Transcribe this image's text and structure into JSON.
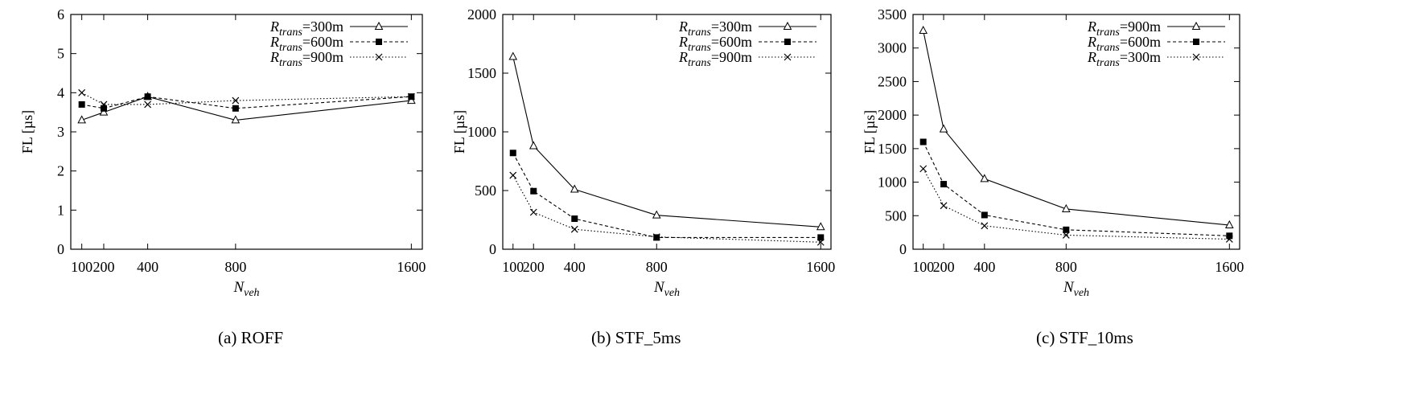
{
  "chart_data": [
    {
      "type": "line",
      "caption": "(a) ROFF",
      "xlabel_main": "N",
      "xlabel_sub": "veh",
      "ylabel": "FL [µs]",
      "xlim": [
        50,
        1650
      ],
      "ylim": [
        0,
        6
      ],
      "xticks": [
        100,
        200,
        400,
        800,
        1600
      ],
      "xtick_labels": [
        "100",
        "200",
        "400",
        "800",
        "1600"
      ],
      "yticks": [
        0,
        1,
        2,
        3,
        4,
        5,
        6
      ],
      "ytick_labels": [
        "0",
        "1",
        "2",
        "3",
        "4",
        "5",
        "6"
      ],
      "legend_position": "top-right",
      "grid": false,
      "x": [
        100,
        200,
        400,
        800,
        1600
      ],
      "series": [
        {
          "legend_main": "R",
          "legend_sub": "trans",
          "legend_suffix": "=300m",
          "style": "solid",
          "marker": "triangle",
          "values": [
            3.3,
            3.5,
            3.9,
            3.3,
            3.8
          ]
        },
        {
          "legend_main": "R",
          "legend_sub": "trans",
          "legend_suffix": "=600m",
          "style": "dashed",
          "marker": "square",
          "values": [
            3.7,
            3.6,
            3.9,
            3.6,
            3.9
          ]
        },
        {
          "legend_main": "R",
          "legend_sub": "trans",
          "legend_suffix": "=900m",
          "style": "dotted",
          "marker": "cross",
          "values": [
            4.0,
            3.7,
            3.7,
            3.8,
            3.9
          ]
        }
      ]
    },
    {
      "type": "line",
      "caption": "(b) STF_5ms",
      "xlabel_main": "N",
      "xlabel_sub": "veh",
      "ylabel": "FL [µs]",
      "xlim": [
        50,
        1650
      ],
      "ylim": [
        0,
        2000
      ],
      "xticks": [
        100,
        200,
        400,
        800,
        1600
      ],
      "xtick_labels": [
        "100",
        "200",
        "400",
        "800",
        "1600"
      ],
      "yticks": [
        0,
        500,
        1000,
        1500,
        2000
      ],
      "ytick_labels": [
        "0",
        "500",
        "1000",
        "1500",
        "2000"
      ],
      "legend_position": "top-right",
      "grid": false,
      "x": [
        100,
        200,
        400,
        800,
        1600
      ],
      "series": [
        {
          "legend_main": "R",
          "legend_sub": "trans",
          "legend_suffix": "=300m",
          "style": "solid",
          "marker": "triangle",
          "values": [
            1640,
            880,
            510,
            290,
            190
          ]
        },
        {
          "legend_main": "R",
          "legend_sub": "trans",
          "legend_suffix": "=600m",
          "style": "dashed",
          "marker": "square",
          "values": [
            820,
            495,
            260,
            100,
            100
          ]
        },
        {
          "legend_main": "R",
          "legend_sub": "trans",
          "legend_suffix": "=900m",
          "style": "dotted",
          "marker": "cross",
          "values": [
            630,
            315,
            170,
            105,
            60
          ]
        }
      ]
    },
    {
      "type": "line",
      "caption": "(c) STF_10ms",
      "xlabel_main": "N",
      "xlabel_sub": "veh",
      "ylabel": "FL [µs]",
      "xlim": [
        50,
        1650
      ],
      "ylim": [
        0,
        3500
      ],
      "xticks": [
        100,
        200,
        400,
        800,
        1600
      ],
      "xtick_labels": [
        "100",
        "200",
        "400",
        "800",
        "1600"
      ],
      "yticks": [
        0,
        500,
        1000,
        1500,
        2000,
        2500,
        3000,
        3500
      ],
      "ytick_labels": [
        "0",
        "500",
        "1000",
        "1500",
        "2000",
        "2500",
        "3000",
        "3500"
      ],
      "legend_position": "top-right",
      "grid": false,
      "x": [
        100,
        200,
        400,
        800,
        1600
      ],
      "series": [
        {
          "legend_main": "R",
          "legend_sub": "trans",
          "legend_suffix": "=900m",
          "style": "solid",
          "marker": "triangle",
          "values": [
            3260,
            1790,
            1050,
            600,
            360
          ]
        },
        {
          "legend_main": "R",
          "legend_sub": "trans",
          "legend_suffix": "=600m",
          "style": "dashed",
          "marker": "square",
          "values": [
            1600,
            970,
            510,
            290,
            200
          ]
        },
        {
          "legend_main": "R",
          "legend_sub": "trans",
          "legend_suffix": "=300m",
          "style": "dotted",
          "marker": "cross",
          "values": [
            1200,
            650,
            350,
            210,
            150
          ]
        }
      ]
    }
  ]
}
